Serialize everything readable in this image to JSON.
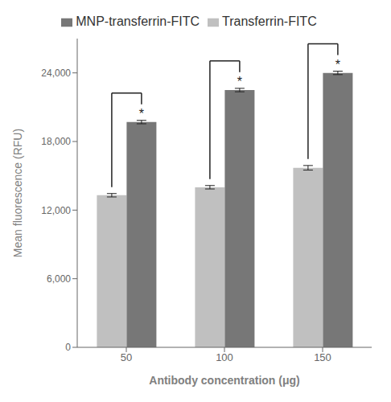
{
  "chart_data": {
    "type": "bar",
    "categories": [
      "50",
      "100",
      "150"
    ],
    "series": [
      {
        "name": "Transferrin-FITC",
        "color": "#c0c0c0",
        "values": [
          13300,
          14000,
          15700
        ],
        "errors": [
          150,
          150,
          200
        ]
      },
      {
        "name": "MNP-transferrin-FITC",
        "color": "#777777",
        "values": [
          19700,
          22500,
          24000
        ],
        "errors": [
          150,
          150,
          150
        ]
      }
    ],
    "xlabel": "Antibody concentration (μg)",
    "ylabel": "Mean fluorescence (RFU)",
    "ylim": [
      0,
      27000
    ],
    "yticks": [
      0,
      {
        "value": 6000,
        "label": "6,000"
      },
      {
        "value": 12000,
        "label": "12,000"
      },
      {
        "value": 18000,
        "label": "18,000"
      },
      {
        "value": 24000,
        "label": "24,000"
      }
    ],
    "annotations": [
      {
        "text": "*",
        "category": "50"
      },
      {
        "text": "*",
        "category": "100"
      },
      {
        "text": "*",
        "category": "150"
      }
    ],
    "grid": false,
    "legend": "top"
  }
}
